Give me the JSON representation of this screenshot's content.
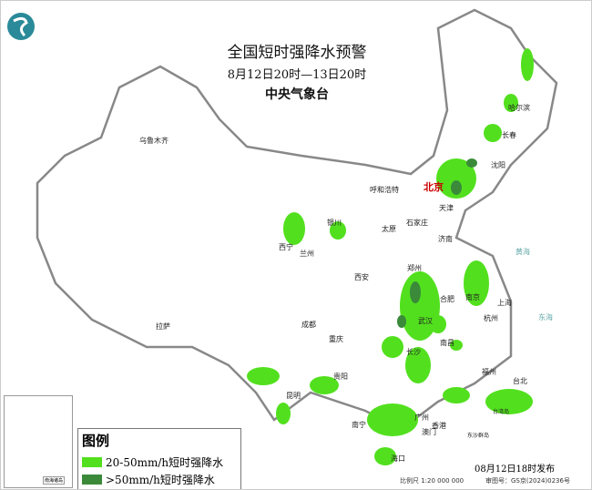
{
  "header": {
    "title": "全国短时强降水预警",
    "period": "8月12日20时—13日20时",
    "issuer": "中央气象台"
  },
  "legend": {
    "title": "图例",
    "items": [
      {
        "label": "20-50mm/h短时强降水",
        "color": "#52e01e"
      },
      {
        "label": ">50mm/h短时强降水",
        "color": "#3a8a3a"
      }
    ]
  },
  "footer": {
    "publish_time": "08月12日18时发布",
    "scale": "比例尺 1:20 000 000",
    "review_no": "审图号：GS京(2024)0236号"
  },
  "inset": {
    "label": "南海诸岛"
  },
  "logo_icon": "cma-logo",
  "cities": {
    "capital": "北京",
    "others": [
      "乌鲁木齐",
      "哈尔滨",
      "长春",
      "沈阳",
      "天津",
      "呼和浩特",
      "石家庄",
      "太原",
      "济南",
      "银川",
      "西宁",
      "兰州",
      "西安",
      "郑州",
      "合肥",
      "南京",
      "上海",
      "杭州",
      "武汉",
      "成都",
      "重庆",
      "长沙",
      "南昌",
      "福州",
      "台北",
      "拉萨",
      "贵阳",
      "昆明",
      "南宁",
      "广州",
      "香港",
      "澳门",
      "海口"
    ]
  },
  "places": [
    "黄海",
    "东海",
    "台湾岛",
    "东沙群岛"
  ]
}
